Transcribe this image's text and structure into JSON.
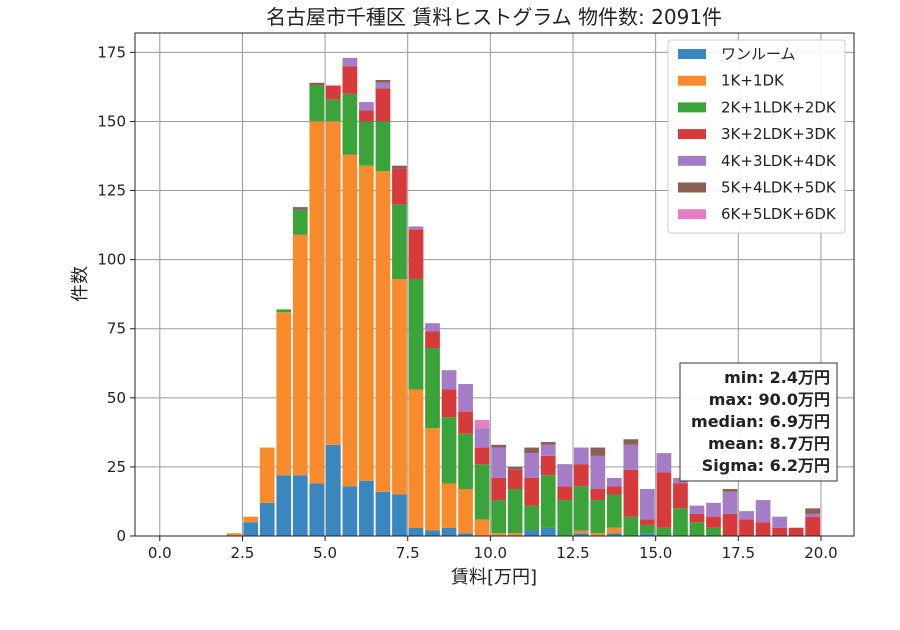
{
  "chart_data": {
    "type": "bar",
    "stacked": true,
    "title": "名古屋市千種区 賃料ヒストグラム  物件数: 2091件",
    "xlabel": "賃料[万円]",
    "ylabel": "件数",
    "xlim": [
      -0.75,
      21.0
    ],
    "ylim": [
      0,
      182
    ],
    "grid": true,
    "legend_position": "top-right",
    "bin_width": 0.5,
    "x_ticks": [
      0.0,
      2.5,
      5.0,
      7.5,
      10.0,
      12.5,
      15.0,
      17.5,
      20.0
    ],
    "x_tick_labels": [
      "0.0",
      "2.5",
      "5.0",
      "7.5",
      "10.0",
      "12.5",
      "15.0",
      "17.5",
      "20.0"
    ],
    "y_ticks": [
      0,
      25,
      50,
      75,
      100,
      125,
      150,
      175
    ],
    "y_tick_labels": [
      "0",
      "25",
      "50",
      "75",
      "100",
      "125",
      "150",
      "175"
    ],
    "bins_start": [
      2.0,
      2.5,
      3.0,
      3.5,
      4.0,
      4.5,
      5.0,
      5.5,
      6.0,
      6.5,
      7.0,
      7.5,
      8.0,
      8.5,
      9.0,
      9.5,
      10.0,
      10.5,
      11.0,
      11.5,
      12.0,
      12.5,
      13.0,
      13.5,
      14.0,
      14.5,
      15.0,
      15.5,
      16.0,
      16.5,
      17.0,
      17.5,
      18.0,
      18.5,
      19.0,
      19.5
    ],
    "series": [
      {
        "name": "ワンルーム",
        "color": "#3a87c0",
        "values": [
          0,
          5,
          12,
          22,
          22,
          19,
          33,
          18,
          20,
          16,
          15,
          3,
          2,
          3,
          1,
          0,
          0,
          0,
          2,
          3,
          0,
          1,
          0,
          1,
          0,
          1,
          0,
          0,
          0,
          0,
          0,
          0,
          0,
          0,
          0,
          0
        ]
      },
      {
        "name": "1K+1DK",
        "color": "#f98b2c",
        "values": [
          1,
          2,
          20,
          59,
          87,
          131,
          117,
          120,
          114,
          116,
          78,
          50,
          37,
          16,
          16,
          6,
          1,
          1,
          0,
          0,
          0,
          1,
          1,
          2,
          0,
          0,
          0,
          0,
          0,
          0,
          0,
          0,
          0,
          0,
          0,
          0
        ]
      },
      {
        "name": "2K+1LDK+2DK",
        "color": "#3aa33a",
        "values": [
          0,
          0,
          0,
          1,
          9,
          13,
          8,
          22,
          16,
          18,
          27,
          40,
          29,
          24,
          20,
          20,
          12,
          16,
          9,
          19,
          13,
          16,
          12,
          12,
          7,
          3,
          3,
          10,
          5,
          3,
          0,
          0,
          0,
          0,
          0,
          0
        ]
      },
      {
        "name": "3K+2LDK+3DK",
        "color": "#d73a3b",
        "values": [
          0,
          0,
          0,
          0,
          0,
          0,
          5,
          10,
          4,
          12,
          13,
          18,
          6,
          10,
          8,
          6,
          8,
          7,
          10,
          7,
          5,
          8,
          4,
          3,
          17,
          2,
          20,
          9,
          3,
          4,
          8,
          6,
          5,
          3,
          3,
          7
        ]
      },
      {
        "name": "4K+3LDK+4DK",
        "color": "#a47dc6",
        "values": [
          0,
          0,
          0,
          0,
          0,
          0,
          0,
          3,
          3,
          2,
          0,
          1,
          3,
          7,
          10,
          7,
          11,
          0,
          9,
          4,
          8,
          6,
          12,
          3,
          9,
          11,
          7,
          2,
          3,
          5,
          8,
          3,
          8,
          4,
          0,
          1
        ]
      },
      {
        "name": "5K+4LDK+5DK",
        "color": "#8c5f55",
        "values": [
          0,
          0,
          0,
          0,
          1,
          1,
          0,
          0,
          0,
          1,
          1,
          0,
          0,
          0,
          0,
          0,
          1,
          1,
          2,
          1,
          0,
          0,
          3,
          0,
          2,
          0,
          0,
          0,
          0,
          0,
          1,
          0,
          0,
          0,
          0,
          2
        ]
      },
      {
        "name": "6K+5LDK+6DK",
        "color": "#e57fc5",
        "values": [
          0,
          0,
          0,
          0,
          0,
          0,
          0,
          0,
          0,
          0,
          0,
          0,
          0,
          0,
          0,
          3,
          0,
          0,
          0,
          0,
          0,
          0,
          0,
          0,
          0,
          0,
          0,
          0,
          0,
          0,
          0,
          0,
          0,
          0,
          0,
          0
        ]
      }
    ],
    "stats": {
      "min": "min: 2.4万円",
      "max": "max: 90.0万円",
      "median": "median: 6.9万円",
      "mean": "mean: 8.7万円",
      "sigma": "Sigma: 6.2万円"
    }
  }
}
